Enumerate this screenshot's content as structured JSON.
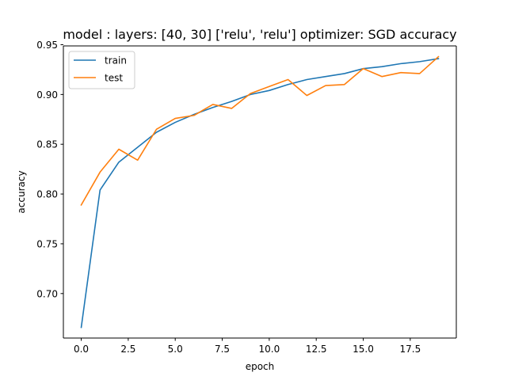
{
  "chart_data": {
    "type": "line",
    "title": "model : layers: [40, 30] ['relu', 'relu'] optimizer: SGD accuracy",
    "xlabel": "epoch",
    "ylabel": "accuracy",
    "xlim": [
      -0.95,
      19.95
    ],
    "ylim": [
      0.6553,
      0.9488
    ],
    "x": [
      0,
      1,
      2,
      3,
      4,
      5,
      6,
      7,
      8,
      9,
      10,
      11,
      12,
      13,
      14,
      15,
      16,
      17,
      18,
      19
    ],
    "xticks": [
      0.0,
      2.5,
      5.0,
      7.5,
      10.0,
      12.5,
      15.0,
      17.5
    ],
    "xtick_labels": [
      "0.0",
      "2.5",
      "5.0",
      "7.5",
      "10.0",
      "12.5",
      "15.0",
      "17.5"
    ],
    "yticks": [
      0.7,
      0.75,
      0.8,
      0.85,
      0.9,
      0.95
    ],
    "ytick_labels": [
      "0.70",
      "0.75",
      "0.80",
      "0.85",
      "0.90",
      "0.95"
    ],
    "grid": false,
    "legend_position": "top-left",
    "series": [
      {
        "name": "train",
        "color": "#1f77b4",
        "values": [
          0.666,
          0.804,
          0.832,
          0.847,
          0.862,
          0.872,
          0.88,
          0.887,
          0.893,
          0.9,
          0.904,
          0.91,
          0.915,
          0.918,
          0.921,
          0.926,
          0.928,
          0.931,
          0.933,
          0.936
        ]
      },
      {
        "name": "test",
        "color": "#ff7f0e",
        "values": [
          0.789,
          0.822,
          0.845,
          0.834,
          0.865,
          0.876,
          0.879,
          0.89,
          0.886,
          0.901,
          0.908,
          0.915,
          0.899,
          0.909,
          0.91,
          0.926,
          0.918,
          0.922,
          0.921,
          0.938
        ]
      }
    ]
  }
}
